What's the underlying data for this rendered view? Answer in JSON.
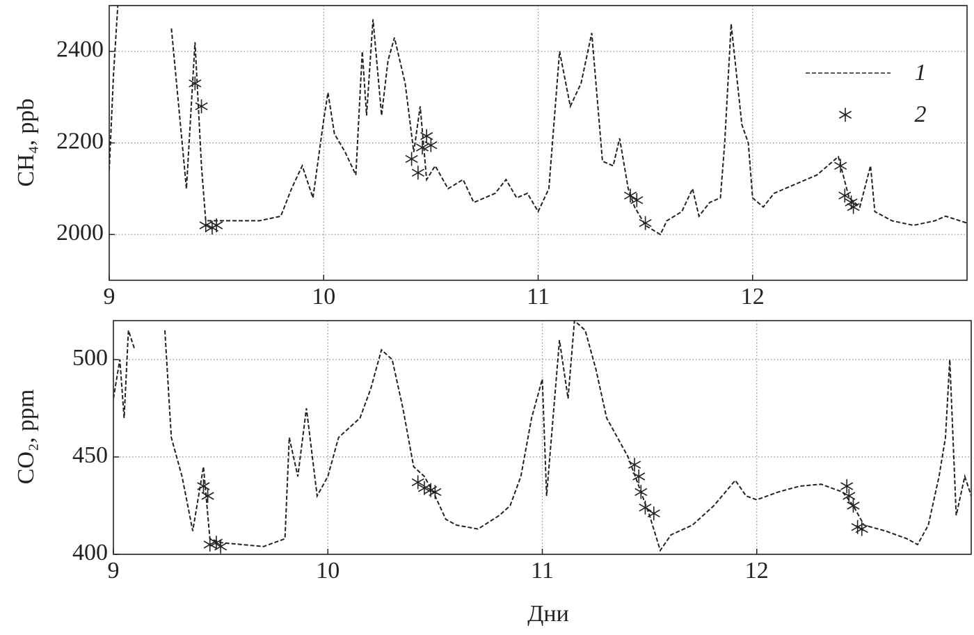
{
  "chart_data": [
    {
      "type": "line",
      "ylabel": "CH₄, ppb",
      "xlim": [
        9,
        13
      ],
      "xticks": [
        9,
        10,
        11,
        12
      ],
      "ylim": [
        1900,
        2500
      ],
      "yticks": [
        2000,
        2200,
        2400
      ],
      "grid": true,
      "legend": "upper right",
      "series": [
        {
          "name": "1",
          "color": "#222222",
          "style": "dashed",
          "x": [
            9.0,
            9.02,
            9.04,
            9.05,
            9.29,
            9.33,
            9.36,
            9.4,
            9.43,
            9.45,
            9.5,
            9.7,
            9.8,
            9.85,
            9.9,
            9.95,
            10.0,
            10.02,
            10.05,
            10.1,
            10.15,
            10.18,
            10.2,
            10.23,
            10.27,
            10.3,
            10.33,
            10.38,
            10.42,
            10.45,
            10.48,
            10.52,
            10.58,
            10.65,
            10.7,
            10.8,
            10.85,
            10.9,
            10.95,
            11.0,
            11.05,
            11.1,
            11.15,
            11.2,
            11.25,
            11.3,
            11.35,
            11.38,
            11.42,
            11.45,
            11.5,
            11.57,
            11.6,
            11.67,
            11.72,
            11.75,
            11.8,
            11.85,
            11.87,
            11.9,
            11.95,
            11.98,
            12.0,
            12.05,
            12.1,
            12.2,
            12.3,
            12.4,
            12.45,
            12.5,
            12.55,
            12.57,
            12.65,
            12.75,
            12.85,
            12.9,
            13.0
          ],
          "values": [
            2140,
            2350,
            2500,
            null,
            2450,
            2250,
            2100,
            2420,
            2150,
            2030,
            2030,
            2030,
            2040,
            2100,
            2150,
            2080,
            2250,
            2310,
            2220,
            2180,
            2130,
            2400,
            2260,
            2470,
            2260,
            2380,
            2430,
            2330,
            2180,
            2280,
            2120,
            2150,
            2100,
            2120,
            2070,
            2090,
            2120,
            2080,
            2090,
            2050,
            2100,
            2400,
            2280,
            2330,
            2440,
            2160,
            2150,
            2210,
            2100,
            2060,
            2020,
            2000,
            2030,
            2050,
            2100,
            2040,
            2070,
            2080,
            2200,
            2460,
            2240,
            2200,
            2080,
            2060,
            2090,
            2110,
            2130,
            2170,
            2080,
            2060,
            2150,
            2050,
            2030,
            2020,
            2030,
            2040,
            2025
          ]
        },
        {
          "name": "2",
          "color": "#222222",
          "marker": "star",
          "x": [
            9.4,
            9.43,
            9.45,
            9.48,
            9.5,
            10.41,
            10.44,
            10.46,
            10.48,
            10.5,
            11.43,
            11.46,
            11.5,
            12.41,
            12.43,
            12.46,
            12.47
          ],
          "values": [
            2330,
            2280,
            2020,
            2015,
            2020,
            2165,
            2135,
            2190,
            2215,
            2195,
            2085,
            2075,
            2025,
            2150,
            2085,
            2070,
            2060
          ]
        }
      ]
    },
    {
      "type": "line",
      "ylabel": "CO₂, ppm",
      "xlabel": "Дни",
      "xlim": [
        9,
        13
      ],
      "xticks": [
        9,
        10,
        11,
        12
      ],
      "ylim": [
        400,
        520
      ],
      "yticks": [
        400,
        450,
        500
      ],
      "grid": true,
      "series": [
        {
          "color": "#222222",
          "style": "dashed",
          "x": [
            9.0,
            9.03,
            9.05,
            9.07,
            9.1,
            9.12,
            9.24,
            9.27,
            9.32,
            9.37,
            9.42,
            9.45,
            9.5,
            9.7,
            9.8,
            9.82,
            9.86,
            9.9,
            9.95,
            10.0,
            10.05,
            10.1,
            10.15,
            10.2,
            10.25,
            10.3,
            10.35,
            10.4,
            10.45,
            10.5,
            10.55,
            10.6,
            10.7,
            10.8,
            10.85,
            10.9,
            10.95,
            11.0,
            11.02,
            11.08,
            11.12,
            11.15,
            11.2,
            11.25,
            11.3,
            11.35,
            11.4,
            11.45,
            11.5,
            11.55,
            11.6,
            11.7,
            11.8,
            11.9,
            11.95,
            12.0,
            12.1,
            12.2,
            12.3,
            12.4,
            12.45,
            12.5,
            12.6,
            12.7,
            12.75,
            12.8,
            12.85,
            12.88,
            12.9,
            12.93,
            12.97,
            13.0
          ],
          "values": [
            480,
            500,
            470,
            515,
            505,
            null,
            515,
            460,
            440,
            412,
            445,
            408,
            406,
            404,
            408,
            460,
            440,
            475,
            430,
            440,
            460,
            465,
            470,
            485,
            505,
            500,
            475,
            445,
            440,
            430,
            418,
            415,
            413,
            420,
            425,
            440,
            470,
            490,
            430,
            510,
            480,
            520,
            515,
            495,
            470,
            460,
            450,
            435,
            420,
            402,
            410,
            415,
            425,
            438,
            430,
            428,
            432,
            435,
            436,
            432,
            425,
            415,
            412,
            408,
            405,
            415,
            440,
            460,
            500,
            420,
            440,
            430
          ]
        },
        {
          "color": "#222222",
          "marker": "star",
          "x": [
            9.42,
            9.44,
            9.45,
            9.48,
            9.5,
            10.42,
            10.45,
            10.48,
            10.5,
            11.43,
            11.45,
            11.46,
            11.48,
            11.52,
            12.42,
            12.43,
            12.45,
            12.47,
            12.49
          ],
          "values": [
            435,
            430,
            405,
            406,
            404,
            437,
            434,
            433,
            432,
            446,
            440,
            432,
            424,
            421,
            435,
            430,
            425,
            414,
            413
          ]
        }
      ]
    }
  ]
}
